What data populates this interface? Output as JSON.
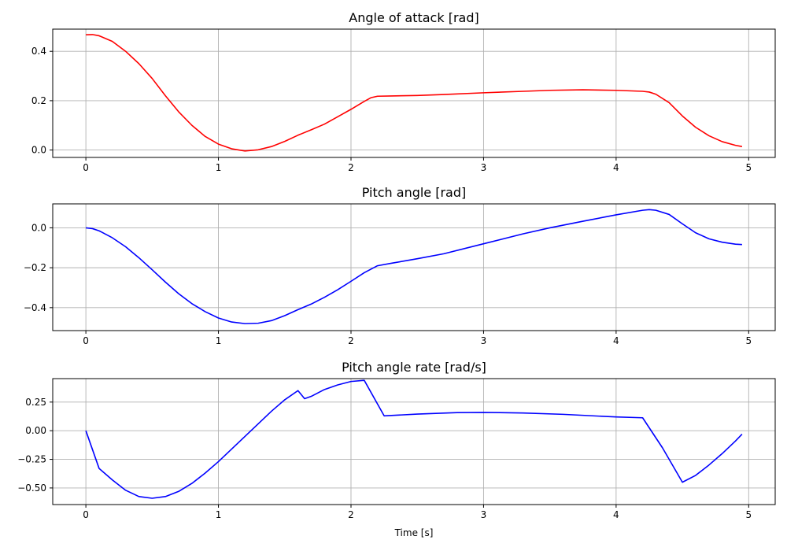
{
  "chart_data": [
    {
      "type": "line",
      "title": "Angle of attack [rad]",
      "xlabel": "",
      "ylabel": "",
      "xlim": [
        -0.25,
        5.2
      ],
      "ylim": [
        -0.03,
        0.49
      ],
      "xticks": [
        0,
        1,
        2,
        3,
        4,
        5
      ],
      "xtick_labels": [
        "0",
        "1",
        "2",
        "3",
        "4",
        "5"
      ],
      "yticks": [
        0.0,
        0.2,
        0.4
      ],
      "ytick_labels": [
        "0.0",
        "0.2",
        "0.4"
      ],
      "grid": true,
      "series": [
        {
          "color": "#ff0000",
          "x": [
            0,
            0.05,
            0.1,
            0.2,
            0.3,
            0.4,
            0.5,
            0.6,
            0.7,
            0.8,
            0.9,
            1.0,
            1.1,
            1.2,
            1.3,
            1.4,
            1.5,
            1.6,
            1.7,
            1.8,
            1.9,
            2.0,
            2.1,
            2.15,
            2.2,
            2.3,
            2.5,
            2.7,
            3.0,
            3.3,
            3.5,
            3.75,
            4.0,
            4.2,
            4.25,
            4.3,
            4.4,
            4.5,
            4.6,
            4.7,
            4.8,
            4.9,
            4.95
          ],
          "y": [
            0.467,
            0.468,
            0.463,
            0.44,
            0.4,
            0.35,
            0.29,
            0.22,
            0.155,
            0.1,
            0.055,
            0.024,
            0.005,
            -0.004,
            0.001,
            0.014,
            0.035,
            0.06,
            0.082,
            0.105,
            0.135,
            0.165,
            0.197,
            0.212,
            0.218,
            0.219,
            0.221,
            0.225,
            0.232,
            0.238,
            0.242,
            0.244,
            0.242,
            0.238,
            0.235,
            0.226,
            0.192,
            0.138,
            0.092,
            0.058,
            0.034,
            0.019,
            0.014
          ]
        }
      ]
    },
    {
      "type": "line",
      "title": "Pitch angle [rad]",
      "xlabel": "",
      "ylabel": "",
      "xlim": [
        -0.25,
        5.2
      ],
      "ylim": [
        -0.515,
        0.12
      ],
      "xticks": [
        0,
        1,
        2,
        3,
        4,
        5
      ],
      "xtick_labels": [
        "0",
        "1",
        "2",
        "3",
        "4",
        "5"
      ],
      "yticks": [
        -0.4,
        -0.2,
        0.0
      ],
      "ytick_labels": [
        "−0.4",
        "−0.2",
        "0.0"
      ],
      "grid": true,
      "series": [
        {
          "color": "#0000ff",
          "x": [
            0,
            0.05,
            0.1,
            0.2,
            0.3,
            0.4,
            0.5,
            0.6,
            0.7,
            0.8,
            0.9,
            1.0,
            1.1,
            1.2,
            1.3,
            1.4,
            1.5,
            1.6,
            1.7,
            1.8,
            1.9,
            2.0,
            2.1,
            2.2,
            2.3,
            2.5,
            2.7,
            3.0,
            3.3,
            3.5,
            3.75,
            4.0,
            4.2,
            4.25,
            4.3,
            4.4,
            4.5,
            4.6,
            4.7,
            4.8,
            4.9,
            4.95
          ],
          "y": [
            0.0,
            -0.004,
            -0.015,
            -0.05,
            -0.095,
            -0.15,
            -0.21,
            -0.272,
            -0.33,
            -0.38,
            -0.42,
            -0.452,
            -0.472,
            -0.48,
            -0.478,
            -0.465,
            -0.44,
            -0.41,
            -0.382,
            -0.348,
            -0.31,
            -0.268,
            -0.225,
            -0.19,
            -0.178,
            -0.155,
            -0.13,
            -0.08,
            -0.03,
            0.0,
            0.033,
            0.065,
            0.088,
            0.091,
            0.088,
            0.067,
            0.02,
            -0.025,
            -0.055,
            -0.072,
            -0.082,
            -0.084
          ]
        }
      ]
    },
    {
      "type": "line",
      "title": "Pitch angle rate [rad/s]",
      "xlabel": "Time [s]",
      "ylabel": "",
      "xlim": [
        -0.25,
        5.2
      ],
      "ylim": [
        -0.645,
        0.455
      ],
      "xticks": [
        0,
        1,
        2,
        3,
        4,
        5
      ],
      "xtick_labels": [
        "0",
        "1",
        "2",
        "3",
        "4",
        "5"
      ],
      "yticks": [
        -0.5,
        -0.25,
        0.0,
        0.25
      ],
      "ytick_labels": [
        "−0.50",
        "−0.25",
        "0.00",
        "0.25"
      ],
      "grid": true,
      "series": [
        {
          "color": "#0000ff",
          "x": [
            0,
            0.1,
            0.2,
            0.3,
            0.4,
            0.5,
            0.6,
            0.7,
            0.8,
            0.9,
            1.0,
            1.1,
            1.2,
            1.3,
            1.4,
            1.5,
            1.6,
            1.65,
            1.7,
            1.8,
            1.9,
            2.0,
            2.1,
            2.25,
            2.5,
            2.8,
            3.0,
            3.3,
            3.6,
            4.0,
            4.2,
            4.35,
            4.5,
            4.6,
            4.7,
            4.8,
            4.9,
            4.95
          ],
          "y": [
            0.0,
            -0.33,
            -0.43,
            -0.52,
            -0.575,
            -0.59,
            -0.575,
            -0.53,
            -0.46,
            -0.37,
            -0.27,
            -0.16,
            -0.05,
            0.06,
            0.17,
            0.27,
            0.35,
            0.28,
            0.3,
            0.36,
            0.4,
            0.43,
            0.44,
            0.13,
            0.145,
            0.158,
            0.16,
            0.155,
            0.143,
            0.12,
            0.113,
            -0.15,
            -0.45,
            -0.39,
            -0.3,
            -0.2,
            -0.09,
            -0.03
          ]
        }
      ]
    }
  ]
}
